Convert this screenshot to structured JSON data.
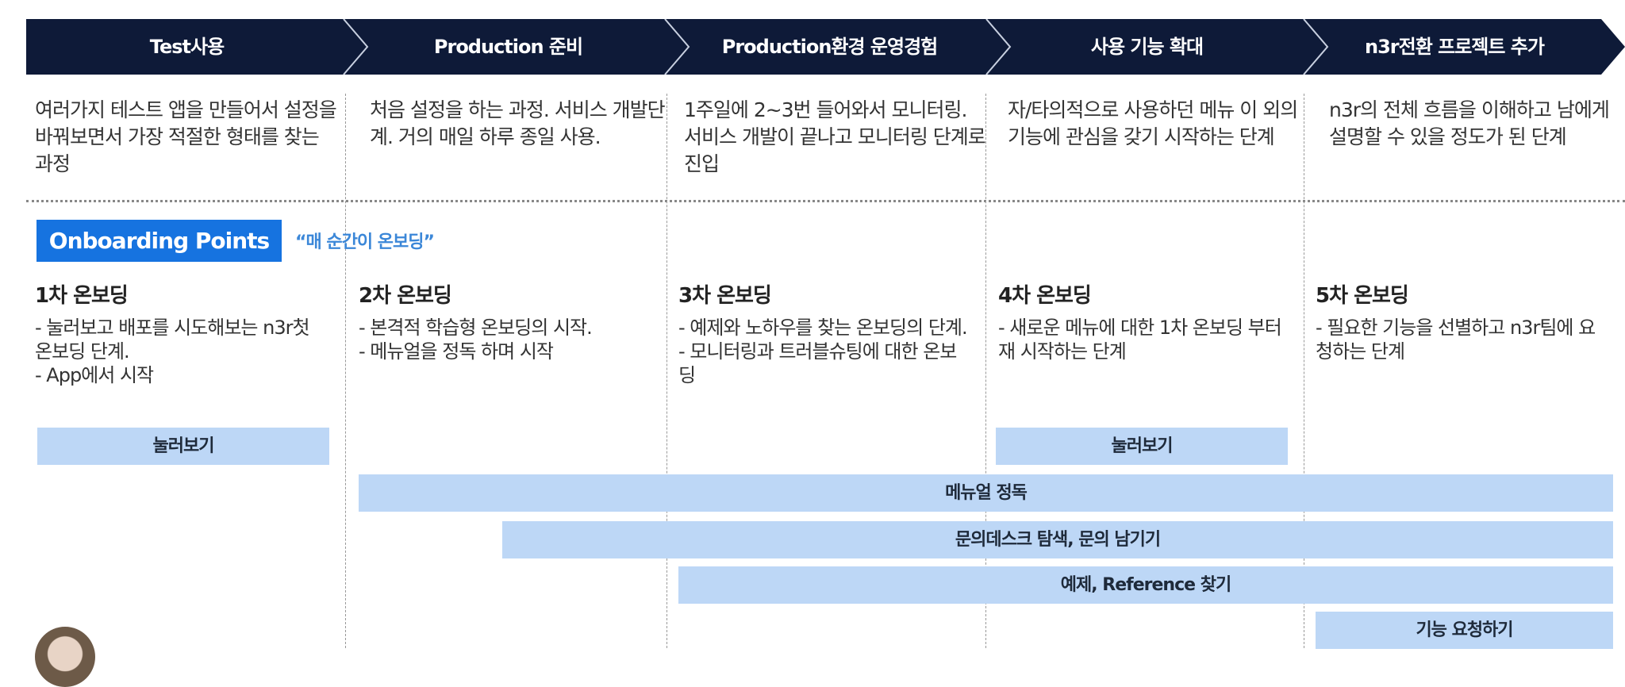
{
  "colors": {
    "header": "#0e1a38",
    "onboarding_badge": "#1673e0",
    "bar": "#bdd7f6",
    "quote": "#3b87d8"
  },
  "stages": [
    {
      "label": "Test사용",
      "desc": "여러가지 테스트 앱을 만들어서 설정을 바꿔보면서 가장 적절한 형태를 찾는 과정"
    },
    {
      "label": "Production 준비",
      "desc": "처음 설정을 하는 과정. 서비스 개발단계. 거의 매일 하루 종일 사용."
    },
    {
      "label": "Production환경 운영경험",
      "desc": "1주일에 2~3번 들어와서 모니터링. 서비스 개발이 끝나고 모니터링 단계로 진입"
    },
    {
      "label": "사용 기능 확대",
      "desc": "자/타의적으로 사용하던 메뉴 이 외의 기능에 관심을 갖기 시작하는 단계"
    },
    {
      "label": "n3r전환 프로젝트 추가",
      "desc": "n3r의 전체 흐름을 이해하고 남에게 설명할 수 있을 정도가 된 단계"
    }
  ],
  "onboarding": {
    "badge": "Onboarding Points",
    "quote": "“매 순간이 온보딩”"
  },
  "steps": [
    {
      "title": "1차 온보딩",
      "lines": [
        "- 눌러보고 배포를 시도해보는 n3r첫 온보딩 단계.",
        "- App에서 시작"
      ]
    },
    {
      "title": "2차 온보딩",
      "lines": [
        "- 본격적 학습형 온보딩의 시작.",
        "- 메뉴얼을 정독 하며 시작"
      ]
    },
    {
      "title": "3차 온보딩",
      "lines": [
        "- 예제와 노하우를 찾는 온보딩의 단계.",
        "- 모니터링과 트러블슈팅에 대한 온보딩"
      ]
    },
    {
      "title": "4차 온보딩",
      "lines": [
        "- 새로운 메뉴에 대한 1차 온보딩 부터 재 시작하는 단계"
      ]
    },
    {
      "title": "5차 온보딩",
      "lines": [
        "- 필요한 기능을 선별하고 n3r팀에 요청하는 단계"
      ]
    }
  ],
  "bars": {
    "try1": "눌러보기",
    "try2": "눌러보기",
    "manual": "메뉴얼 정독",
    "helpdesk": "문의데스크 탐색, 문의 남기기",
    "examples": "예제, Reference 찾기",
    "request": "기능 요청하기"
  }
}
